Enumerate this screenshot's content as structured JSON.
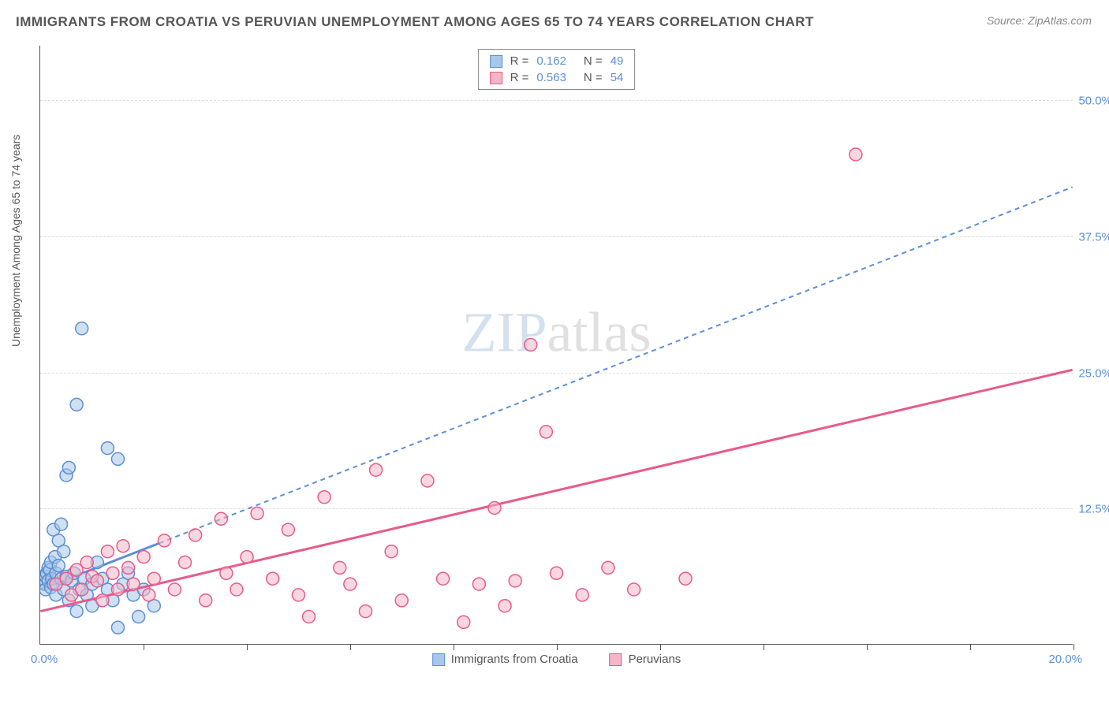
{
  "title": "IMMIGRANTS FROM CROATIA VS PERUVIAN UNEMPLOYMENT AMONG AGES 65 TO 74 YEARS CORRELATION CHART",
  "source": "Source: ZipAtlas.com",
  "ylabel": "Unemployment Among Ages 65 to 74 years",
  "watermark_zip": "ZIP",
  "watermark_atlas": "atlas",
  "chart": {
    "type": "scatter",
    "xlim": [
      0,
      20
    ],
    "ylim": [
      0,
      55
    ],
    "xtick_count": 10,
    "xlim_labels": [
      "0.0%",
      "20.0%"
    ],
    "ytick_positions": [
      12.5,
      25.0,
      37.5,
      50.0
    ],
    "ytick_labels": [
      "12.5%",
      "25.0%",
      "37.5%",
      "50.0%"
    ],
    "background_color": "#ffffff",
    "grid_color": "#dddddd",
    "axis_color": "#555555",
    "tick_label_color": "#5b8fd6",
    "marker_radius": 8,
    "marker_stroke_width": 1.5,
    "series": [
      {
        "name": "Immigrants from Croatia",
        "color_fill": "#a8c6e8",
        "color_stroke": "#5b8fd6",
        "fill_opacity": 0.55,
        "R": "0.162",
        "N": "49",
        "points": [
          [
            0.05,
            6.0
          ],
          [
            0.08,
            5.5
          ],
          [
            0.1,
            6.2
          ],
          [
            0.1,
            5.0
          ],
          [
            0.12,
            6.5
          ],
          [
            0.15,
            7.0
          ],
          [
            0.15,
            5.8
          ],
          [
            0.18,
            6.8
          ],
          [
            0.2,
            5.2
          ],
          [
            0.2,
            7.5
          ],
          [
            0.22,
            6.0
          ],
          [
            0.25,
            10.5
          ],
          [
            0.25,
            5.5
          ],
          [
            0.28,
            8.0
          ],
          [
            0.3,
            6.5
          ],
          [
            0.3,
            4.5
          ],
          [
            0.35,
            9.5
          ],
          [
            0.35,
            7.2
          ],
          [
            0.4,
            6.0
          ],
          [
            0.4,
            11.0
          ],
          [
            0.45,
            5.0
          ],
          [
            0.45,
            8.5
          ],
          [
            0.5,
            15.5
          ],
          [
            0.5,
            6.2
          ],
          [
            0.55,
            16.2
          ],
          [
            0.55,
            4.0
          ],
          [
            0.6,
            5.8
          ],
          [
            0.65,
            6.5
          ],
          [
            0.7,
            22.0
          ],
          [
            0.7,
            3.0
          ],
          [
            0.75,
            5.0
          ],
          [
            0.8,
            29.0
          ],
          [
            0.85,
            6.0
          ],
          [
            0.9,
            4.5
          ],
          [
            1.0,
            5.5
          ],
          [
            1.0,
            3.5
          ],
          [
            1.1,
            7.5
          ],
          [
            1.2,
            6.0
          ],
          [
            1.3,
            18.0
          ],
          [
            1.3,
            5.0
          ],
          [
            1.4,
            4.0
          ],
          [
            1.5,
            17.0
          ],
          [
            1.5,
            1.5
          ],
          [
            1.6,
            5.5
          ],
          [
            1.7,
            6.5
          ],
          [
            1.8,
            4.5
          ],
          [
            1.9,
            2.5
          ],
          [
            2.0,
            5.0
          ],
          [
            2.2,
            3.5
          ]
        ],
        "trend_line": {
          "x1": 0,
          "y1": 5.0,
          "x2": 20,
          "y2": 42.0,
          "solid_until_x": 2.3,
          "stroke_width": 3,
          "dash": "6,5"
        }
      },
      {
        "name": "Peruvians",
        "color_fill": "#f4b6c7",
        "color_stroke": "#e85a8a",
        "fill_opacity": 0.55,
        "R": "0.563",
        "N": "54",
        "points": [
          [
            0.3,
            5.5
          ],
          [
            0.5,
            6.0
          ],
          [
            0.6,
            4.5
          ],
          [
            0.7,
            6.8
          ],
          [
            0.8,
            5.0
          ],
          [
            0.9,
            7.5
          ],
          [
            1.0,
            6.2
          ],
          [
            1.1,
            5.8
          ],
          [
            1.2,
            4.0
          ],
          [
            1.3,
            8.5
          ],
          [
            1.4,
            6.5
          ],
          [
            1.5,
            5.0
          ],
          [
            1.6,
            9.0
          ],
          [
            1.7,
            7.0
          ],
          [
            1.8,
            5.5
          ],
          [
            2.0,
            8.0
          ],
          [
            2.1,
            4.5
          ],
          [
            2.2,
            6.0
          ],
          [
            2.4,
            9.5
          ],
          [
            2.6,
            5.0
          ],
          [
            2.8,
            7.5
          ],
          [
            3.0,
            10.0
          ],
          [
            3.2,
            4.0
          ],
          [
            3.5,
            11.5
          ],
          [
            3.6,
            6.5
          ],
          [
            3.8,
            5.0
          ],
          [
            4.0,
            8.0
          ],
          [
            4.2,
            12.0
          ],
          [
            4.5,
            6.0
          ],
          [
            4.8,
            10.5
          ],
          [
            5.0,
            4.5
          ],
          [
            5.2,
            2.5
          ],
          [
            5.5,
            13.5
          ],
          [
            5.8,
            7.0
          ],
          [
            6.0,
            5.5
          ],
          [
            6.3,
            3.0
          ],
          [
            6.5,
            16.0
          ],
          [
            6.8,
            8.5
          ],
          [
            7.0,
            4.0
          ],
          [
            7.5,
            15.0
          ],
          [
            7.8,
            6.0
          ],
          [
            8.2,
            2.0
          ],
          [
            8.5,
            5.5
          ],
          [
            8.8,
            12.5
          ],
          [
            9.0,
            3.5
          ],
          [
            9.5,
            27.5
          ],
          [
            9.8,
            19.5
          ],
          [
            10.0,
            6.5
          ],
          [
            10.5,
            4.5
          ],
          [
            11.0,
            7.0
          ],
          [
            11.5,
            5.0
          ],
          [
            12.5,
            6.0
          ],
          [
            15.8,
            45.0
          ],
          [
            9.2,
            5.8
          ]
        ],
        "trend_line": {
          "x1": 0,
          "y1": 3.0,
          "x2": 20,
          "y2": 25.2,
          "solid_until_x": 20,
          "stroke_width": 3
        }
      }
    ]
  }
}
